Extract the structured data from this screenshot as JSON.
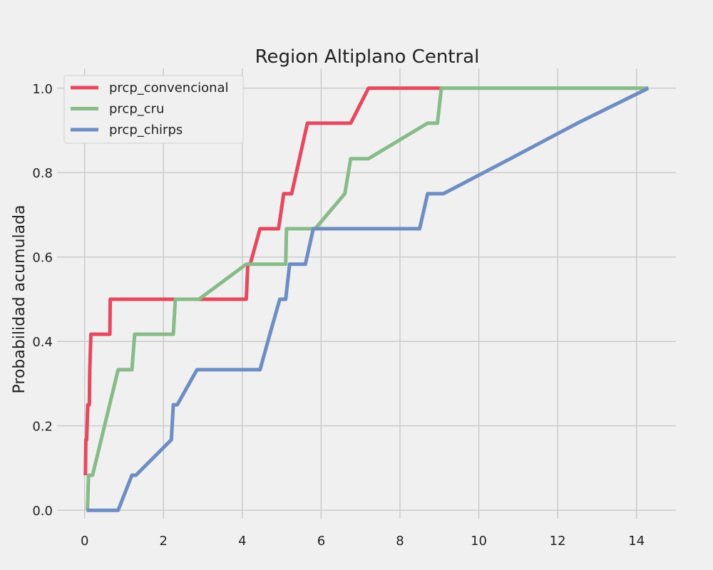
{
  "chart_data": {
    "type": "line",
    "title": "Region Altiplano Central",
    "xlabel": "",
    "ylabel": "Probabilidad acumulada",
    "xlim": [
      -0.7,
      15.0
    ],
    "ylim": [
      -0.02,
      1.03
    ],
    "xticks": [
      0,
      2,
      4,
      6,
      8,
      10,
      12,
      14
    ],
    "yticks": [
      0.0,
      0.2,
      0.4,
      0.6,
      0.8,
      1.0
    ],
    "xtick_labels": [
      "0",
      "2",
      "4",
      "6",
      "8",
      "10",
      "12",
      "14"
    ],
    "ytick_labels": [
      "0.0",
      "0.2",
      "0.4",
      "0.6",
      "0.8",
      "1.0"
    ],
    "grid": true,
    "legend_position": "top-left",
    "series": [
      {
        "name": "prcp_convencional",
        "color": "#e5495f",
        "x": [
          0.02,
          0.03,
          0.05,
          0.08,
          0.09,
          0.12,
          0.13,
          0.16,
          0.17,
          0.64,
          0.65,
          2.0,
          2.95,
          4.1,
          4.14,
          4.2,
          4.45,
          4.92,
          5.05,
          5.25,
          5.45,
          5.65,
          6.75,
          7.2,
          9.1
        ],
        "y": [
          0.083,
          0.167,
          0.167,
          0.25,
          0.25,
          0.25,
          0.333,
          0.417,
          0.417,
          0.417,
          0.5,
          0.5,
          0.5,
          0.5,
          0.583,
          0.583,
          0.667,
          0.667,
          0.75,
          0.75,
          0.833,
          0.917,
          0.917,
          1.0,
          1.0
        ]
      },
      {
        "name": "prcp_cru",
        "color": "#88bb88",
        "x": [
          0.07,
          0.1,
          0.14,
          0.2,
          0.85,
          1.2,
          1.27,
          2.25,
          2.3,
          2.9,
          4.1,
          5.1,
          5.12,
          5.85,
          6.6,
          6.75,
          7.2,
          8.7,
          8.95,
          9.05,
          14.3
        ],
        "y": [
          0.0,
          0.083,
          0.083,
          0.083,
          0.333,
          0.333,
          0.417,
          0.417,
          0.5,
          0.5,
          0.583,
          0.583,
          0.667,
          0.667,
          0.75,
          0.833,
          0.833,
          0.917,
          0.917,
          1.0,
          1.0
        ]
      },
      {
        "name": "prcp_chirps",
        "color": "#6d8dc3",
        "x": [
          0.05,
          0.85,
          1.2,
          1.3,
          2.2,
          2.25,
          2.35,
          2.85,
          4.45,
          4.7,
          4.95,
          5.1,
          5.2,
          5.6,
          5.8,
          8.5,
          8.7,
          9.1,
          10.8,
          12.5,
          14.3
        ],
        "y": [
          0.0,
          0.0,
          0.083,
          0.083,
          0.167,
          0.25,
          0.25,
          0.333,
          0.333,
          0.417,
          0.5,
          0.5,
          0.583,
          0.583,
          0.667,
          0.667,
          0.75,
          0.75,
          0.833,
          0.917,
          1.0
        ]
      }
    ]
  }
}
